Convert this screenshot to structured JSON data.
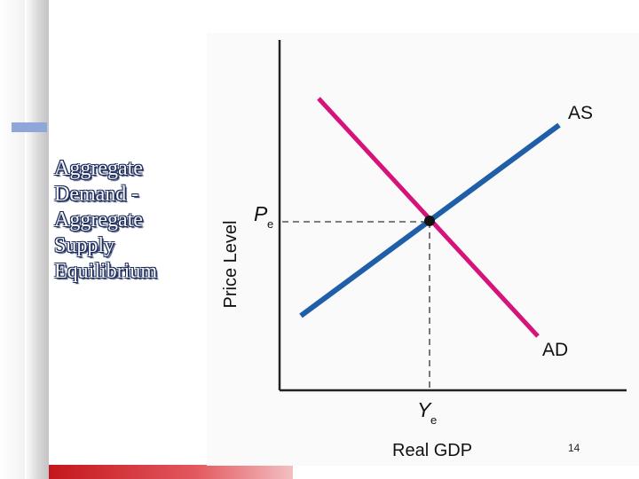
{
  "slide": {
    "title": "Aggregate\nDemand -\nAggregate\nSupply\nEquilibrium",
    "number": "14"
  },
  "diagram": {
    "y_axis_label": "Price Level",
    "x_axis_label": "Real GDP",
    "curves": [
      {
        "name": "AS",
        "color": "#1f5fa8"
      },
      {
        "name": "AD",
        "color": "#d6137a"
      }
    ],
    "equilibrium": {
      "price_label_main": "P",
      "price_label_sub": "e",
      "output_label_main": "Y",
      "output_label_sub": "e"
    }
  }
}
